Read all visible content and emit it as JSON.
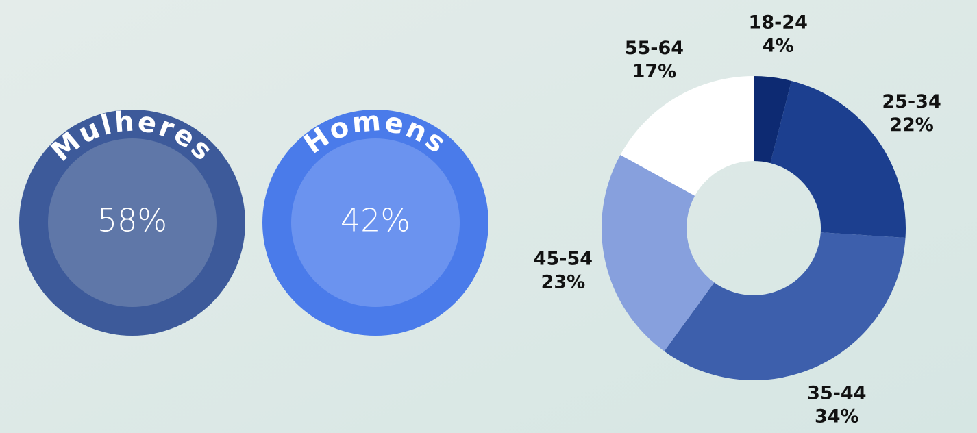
{
  "chart_data": [
    {
      "type": "badge",
      "categories": [
        "Mulheres",
        "Homens"
      ],
      "values": [
        58,
        42
      ],
      "value_labels": [
        "58%",
        "42%"
      ],
      "colors": [
        "#3d5a9a",
        "#4a7bea"
      ],
      "inner_colors": [
        "#5f77a8",
        "#6b93ef"
      ]
    },
    {
      "type": "pie",
      "donut": true,
      "categories": [
        "18-24",
        "25-34",
        "35-44",
        "45-54",
        "55-64"
      ],
      "values": [
        4,
        22,
        34,
        23,
        17
      ],
      "value_labels": [
        "4%",
        "22%",
        "34%",
        "23%",
        "17%"
      ],
      "colors": [
        "#0d2a72",
        "#1c3f8f",
        "#3d5fac",
        "#87a0dd",
        "#ffffff"
      ]
    }
  ]
}
